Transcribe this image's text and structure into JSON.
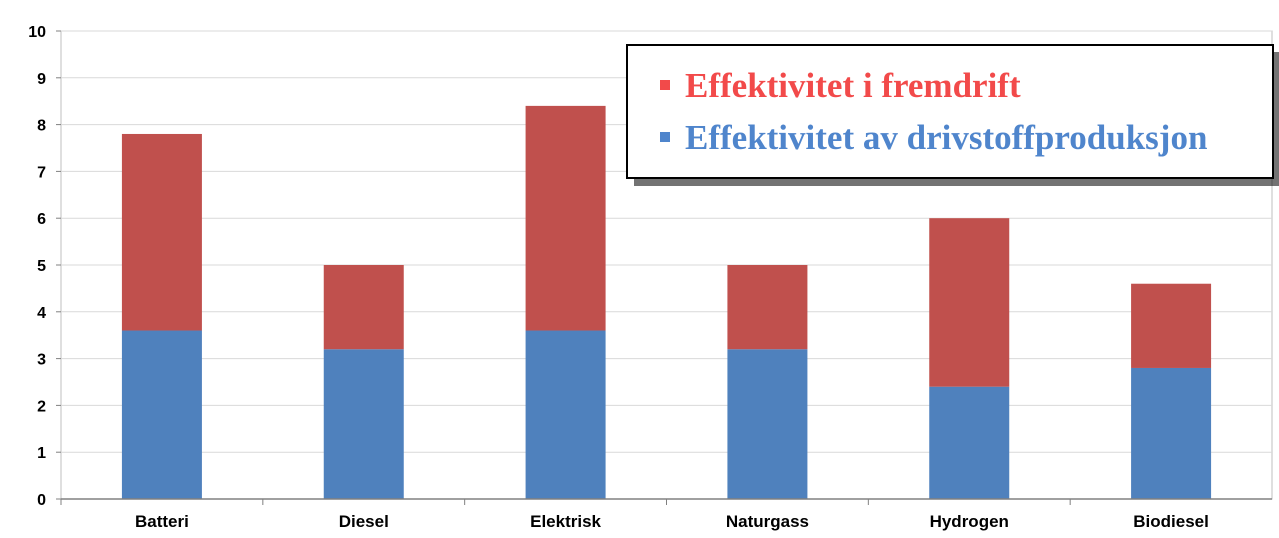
{
  "chart_data": {
    "type": "bar",
    "stacked": true,
    "categories": [
      "Batteri",
      "Diesel",
      "Elektrisk",
      "Naturgass",
      "Hydrogen",
      "Biodiesel"
    ],
    "series": [
      {
        "name": "Effektivitet av drivstoffproduksjon",
        "color": "#4F81BD",
        "values": [
          3.6,
          3.2,
          3.6,
          3.2,
          2.4,
          2.8
        ]
      },
      {
        "name": "Effektivitet i fremdrift",
        "color": "#C0504D",
        "values": [
          4.2,
          1.8,
          4.8,
          1.8,
          3.6,
          1.8
        ]
      }
    ],
    "ylim": [
      0,
      10
    ],
    "yticks": [
      "0",
      "1",
      "2",
      "3",
      "4",
      "5",
      "6",
      "7",
      "8",
      "9",
      "10"
    ],
    "grid": true,
    "legend": {
      "placement": "top-right",
      "items": [
        {
          "label": "Effektivitet i fremdrift",
          "color": "#F24A4A"
        },
        {
          "label": "Effektivitet av drivstoffproduksjon",
          "color": "#4F85CC"
        }
      ]
    }
  }
}
